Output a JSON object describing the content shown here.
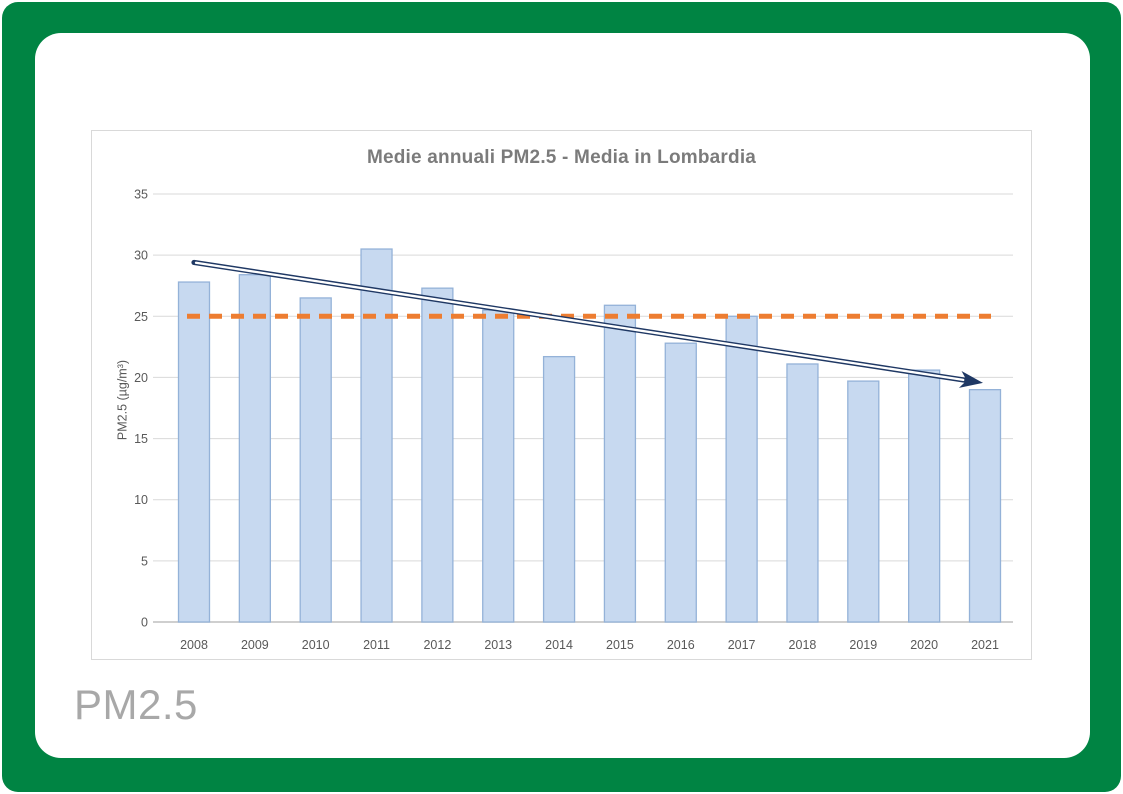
{
  "frame": {
    "border_color": "#008443",
    "canvas_color": "#ffffff"
  },
  "footer": {
    "label": "PM2.5",
    "color": "#a8a8a8"
  },
  "chart_data": {
    "type": "bar",
    "title": "Medie annuali PM2.5 - Media in Lombardia",
    "xlabel": "",
    "ylabel": "PM2.5 (µg/m³)",
    "categories": [
      "2008",
      "2009",
      "2010",
      "2011",
      "2012",
      "2013",
      "2014",
      "2015",
      "2016",
      "2017",
      "2018",
      "2019",
      "2020",
      "2021"
    ],
    "values": [
      27.8,
      28.4,
      26.5,
      30.5,
      27.3,
      25.5,
      21.7,
      25.9,
      22.8,
      25.0,
      21.1,
      19.7,
      20.6,
      19.0
    ],
    "ylim": [
      0,
      35
    ],
    "yticks": [
      0,
      5,
      10,
      15,
      20,
      25,
      30,
      35
    ],
    "grid": true,
    "legend": false,
    "threshold_line": {
      "value": 25,
      "style": "dashed",
      "color": "#ed7d31"
    },
    "trend_arrow": {
      "start_category": "2008",
      "start_value": 29.4,
      "end_category": "2021",
      "end_value": 19.55,
      "color": "#1f3864"
    },
    "colors": {
      "bar_fill": "#c7d9f0",
      "bar_stroke": "#94b2d8",
      "gridline": "#d9d9d9",
      "axis_line": "#bfbfbf",
      "tick_text": "#595959",
      "title_text": "#7b7b7b"
    }
  }
}
